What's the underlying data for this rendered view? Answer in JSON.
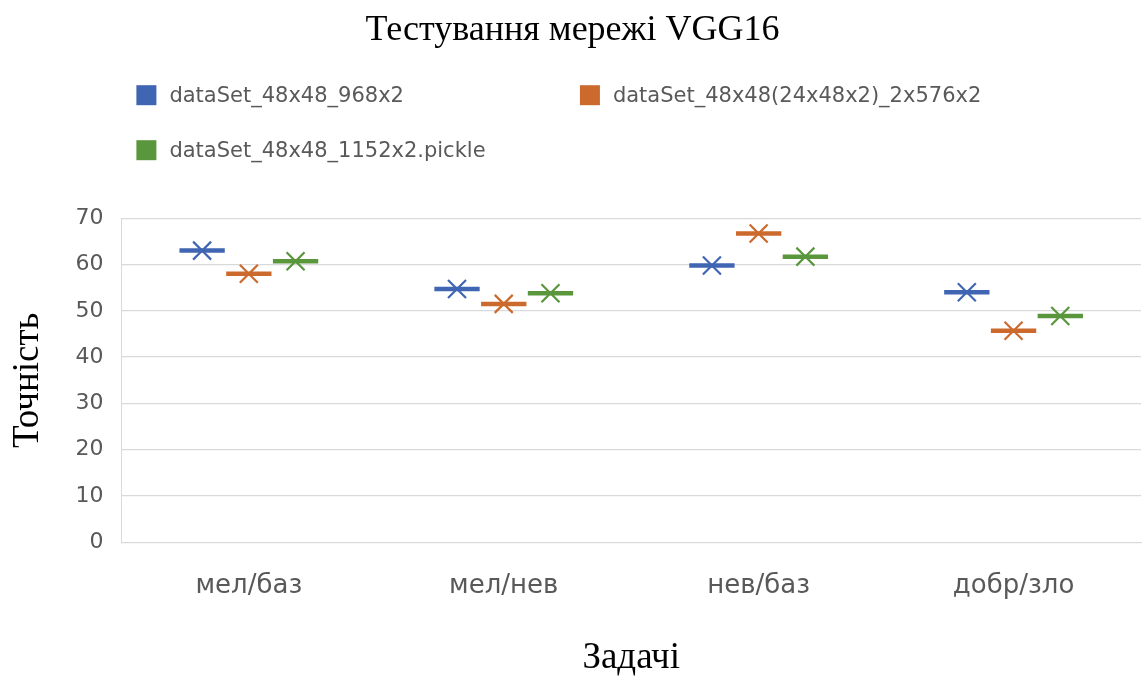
{
  "chart_data": {
    "type": "box",
    "title": "Тестування мережі VGG16",
    "xlabel": "Задачі",
    "ylabel": "Точність",
    "categories": [
      "мел/баз",
      "мел/нев",
      "нев/баз",
      "добр/зло"
    ],
    "series": [
      {
        "name": "dataSet_48x48_968x2",
        "color": "#3f65b3",
        "boxes": [
          {
            "low": 63,
            "q1": 63,
            "median": 63,
            "q3": 63,
            "high": 63,
            "mean": 63
          },
          {
            "low": 54.7,
            "q1": 54.7,
            "median": 54.7,
            "q3": 54.7,
            "high": 54.7,
            "mean": 54.7
          },
          {
            "low": 59.8,
            "q1": 59.8,
            "median": 59.8,
            "q3": 59.8,
            "high": 59.8,
            "mean": 59.8
          },
          {
            "low": 54,
            "q1": 54,
            "median": 54,
            "q3": 54,
            "high": 54,
            "mean": 54
          }
        ]
      },
      {
        "name": "dataSet_48x48(24x48x2)_2x576x2",
        "color": "#cc6a2e",
        "boxes": [
          {
            "low": 58,
            "q1": 58,
            "median": 58,
            "q3": 58,
            "high": 58,
            "mean": 58
          },
          {
            "low": 51.5,
            "q1": 51.5,
            "median": 51.5,
            "q3": 51.5,
            "high": 51.5,
            "mean": 51.5
          },
          {
            "low": 66.7,
            "q1": 66.7,
            "median": 66.7,
            "q3": 66.7,
            "high": 66.7,
            "mean": 66.7
          },
          {
            "low": 45.7,
            "q1": 45.7,
            "median": 45.7,
            "q3": 45.7,
            "high": 45.7,
            "mean": 45.7
          }
        ]
      },
      {
        "name": "dataSet_48x48_1152x2.pickle",
        "color": "#5a963c",
        "boxes": [
          {
            "low": 60.7,
            "q1": 60.7,
            "median": 60.7,
            "q3": 60.7,
            "high": 60.7,
            "mean": 60.7
          },
          {
            "low": 53.8,
            "q1": 53.8,
            "median": 53.8,
            "q3": 53.8,
            "high": 53.8,
            "mean": 53.8
          },
          {
            "low": 61.7,
            "q1": 61.7,
            "median": 61.7,
            "q3": 61.7,
            "high": 61.7,
            "mean": 61.7
          },
          {
            "low": 48.9,
            "q1": 48.9,
            "median": 48.9,
            "q3": 48.9,
            "high": 48.9,
            "mean": 48.9
          }
        ]
      }
    ],
    "ylim": [
      0,
      70
    ],
    "yticks": [
      0,
      10,
      20,
      30,
      40,
      50,
      60,
      70
    ],
    "grid": "y",
    "legend": "top left",
    "marker": "cross"
  }
}
